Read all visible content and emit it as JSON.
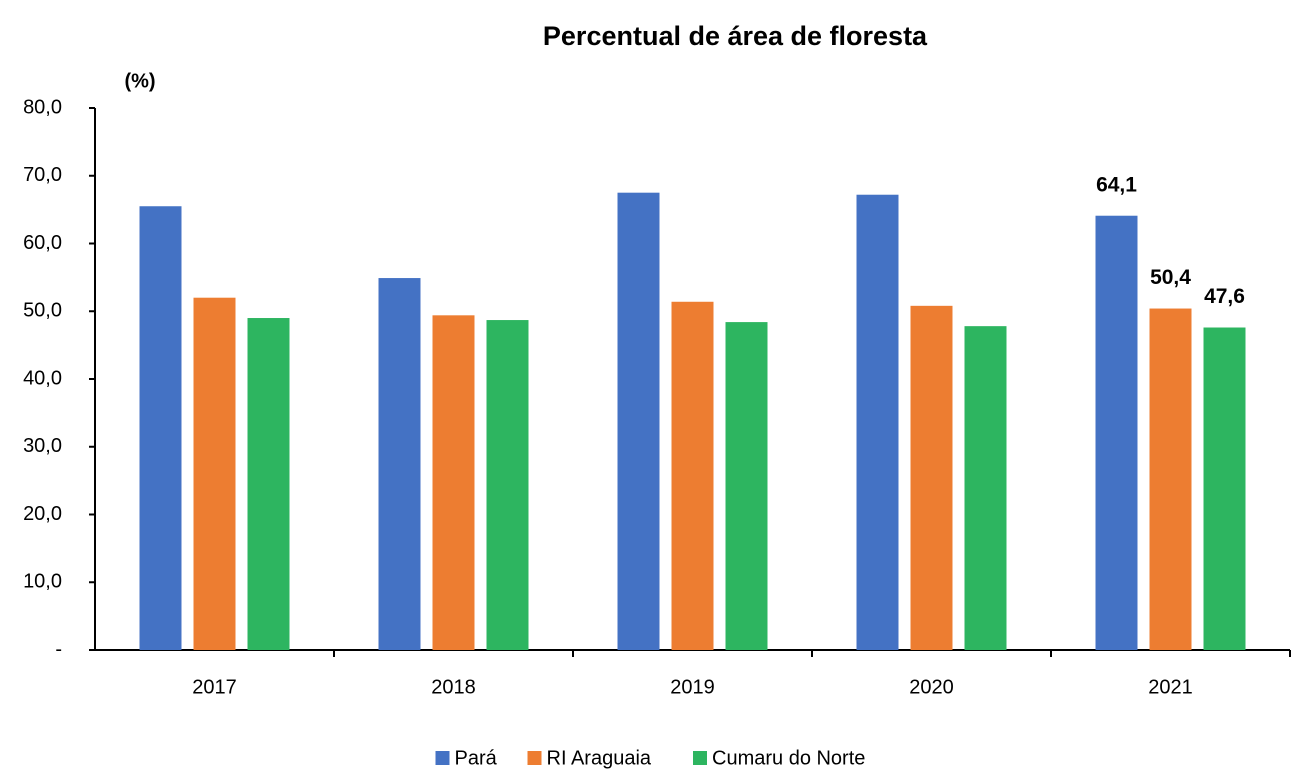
{
  "chart_data": {
    "type": "bar",
    "title": "Percentual de área de floresta",
    "y_label": "(%)",
    "categories": [
      "2017",
      "2018",
      "2019",
      "2020",
      "2021"
    ],
    "series": [
      {
        "name": "Pará",
        "color": "#4472c4",
        "values": [
          65.5,
          54.9,
          67.5,
          67.2,
          64.1
        ],
        "value_labels": [
          null,
          null,
          null,
          null,
          "64,1"
        ]
      },
      {
        "name": "RI Araguaia",
        "color": "#ed7d31",
        "values": [
          52.0,
          49.4,
          51.4,
          50.8,
          50.4
        ],
        "value_labels": [
          null,
          null,
          null,
          null,
          "50,4"
        ]
      },
      {
        "name": "Cumaru do Norte",
        "color": "#2db560",
        "values": [
          49.0,
          48.7,
          48.4,
          47.8,
          47.6
        ],
        "value_labels": [
          null,
          null,
          null,
          null,
          "47,6"
        ]
      }
    ],
    "ylim": [
      0,
      80
    ],
    "yticks": [
      {
        "value": 0,
        "label": "-"
      },
      {
        "value": 10,
        "label": "10,0"
      },
      {
        "value": 20,
        "label": "20,0"
      },
      {
        "value": 30,
        "label": "30,0"
      },
      {
        "value": 40,
        "label": "40,0"
      },
      {
        "value": 50,
        "label": "50,0"
      },
      {
        "value": 60,
        "label": "60,0"
      },
      {
        "value": 70,
        "label": "70,0"
      },
      {
        "value": 80,
        "label": "80,0"
      }
    ],
    "grid": false
  }
}
